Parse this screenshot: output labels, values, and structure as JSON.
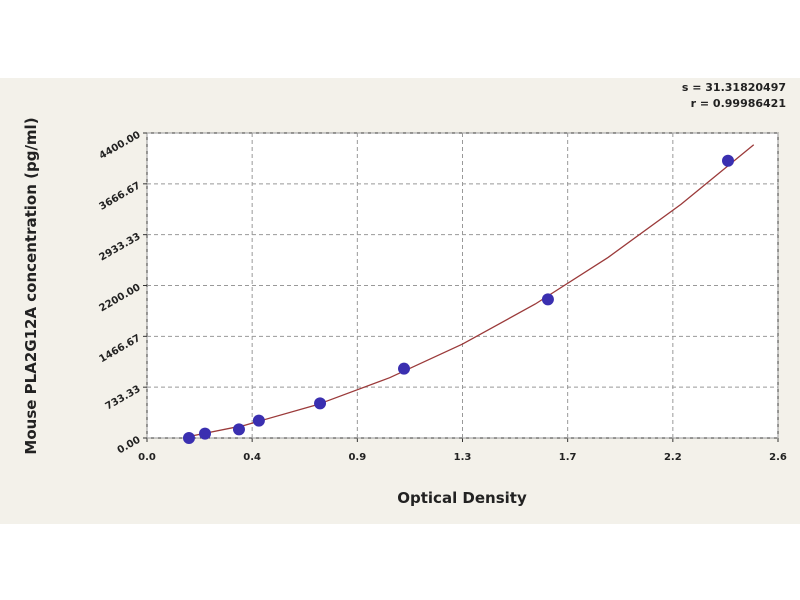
{
  "chart_data": {
    "type": "scatter",
    "xlabel": "Optical Density",
    "ylabel": "Mouse PLA2G12A concentration (pg/ml)",
    "annotations": [
      "s = 31.31820497",
      "r = 0.99986421"
    ],
    "x": [
      0.173,
      0.239,
      0.379,
      0.461,
      0.713,
      1.059,
      1.652,
      2.394
    ],
    "values": [
      0,
      62.5,
      125,
      250,
      500,
      1000,
      2000,
      4000
    ],
    "color": "#3a2fb0",
    "fit_line": {
      "x": [
        0.15,
        0.4,
        0.7,
        1.0,
        1.3,
        1.6,
        1.9,
        2.2,
        2.5
      ],
      "values": [
        4.7,
        181.2,
        478.8,
        870,
        1354.8,
        1933.2,
        2605.2,
        3370.8,
        4230
      ],
      "color": "#9b3a3a"
    },
    "xlim": [
      0,
      2.6
    ],
    "ylim": [
      0,
      4400
    ],
    "xticks": [
      {
        "value": 0,
        "label": "0.0"
      },
      {
        "value": 0.4333,
        "label": "0.4"
      },
      {
        "value": 0.8667,
        "label": "0.9"
      },
      1.3,
      {
        "value": 1.7333,
        "label": "1.7"
      },
      {
        "value": 2.1667,
        "label": "2.2"
      },
      2.6
    ],
    "yticks": [
      {
        "value": 0,
        "label": "0.00"
      },
      {
        "value": 733.33,
        "label": "733.33"
      },
      {
        "value": 1466.67,
        "label": "1466.67"
      },
      {
        "value": 2200,
        "label": "2200.00"
      },
      {
        "value": 2933.33,
        "label": "2933.33"
      },
      {
        "value": 3666.67,
        "label": "3666.67"
      },
      {
        "value": 4400,
        "label": "4400.00"
      }
    ],
    "grid": true
  }
}
